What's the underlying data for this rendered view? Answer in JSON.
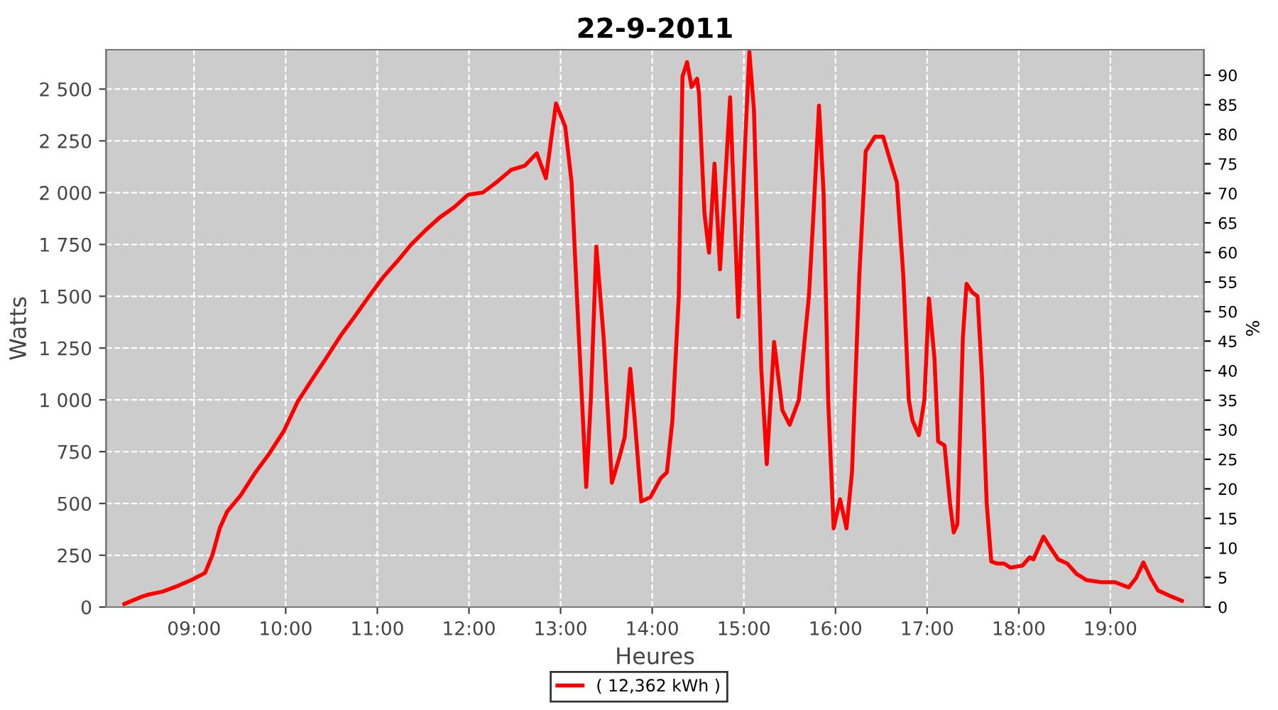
{
  "chart_data": {
    "type": "line",
    "title": "22-9-2011",
    "xlabel": "Heures",
    "ylabel": "Watts",
    "y2label": "%",
    "xlim": [
      8.04,
      20.02
    ],
    "ylim": [
      0,
      2690
    ],
    "y2lim": [
      0,
      94.3
    ],
    "xticks": [
      {
        "value": 9,
        "label": "09:00"
      },
      {
        "value": 10,
        "label": "10:00"
      },
      {
        "value": 11,
        "label": "11:00"
      },
      {
        "value": 12,
        "label": "12:00"
      },
      {
        "value": 13,
        "label": "13:00"
      },
      {
        "value": 14,
        "label": "14:00"
      },
      {
        "value": 15,
        "label": "15:00"
      },
      {
        "value": 16,
        "label": "16:00"
      },
      {
        "value": 17,
        "label": "17:00"
      },
      {
        "value": 18,
        "label": "18:00"
      },
      {
        "value": 19,
        "label": "19:00"
      }
    ],
    "yticks": [
      0,
      250,
      500,
      750,
      {
        "value": 1000,
        "label": "1 000"
      },
      {
        "value": 1250,
        "label": "1 250"
      },
      {
        "value": 1500,
        "label": "1 500"
      },
      {
        "value": 1750,
        "label": "1 750"
      },
      {
        "value": 2000,
        "label": "2 000"
      },
      {
        "value": 2250,
        "label": "2 250"
      },
      {
        "value": 2500,
        "label": "2 500"
      }
    ],
    "y2ticks": [
      0,
      5,
      10,
      15,
      20,
      25,
      30,
      35,
      40,
      45,
      50,
      55,
      60,
      65,
      70,
      75,
      80,
      85,
      90
    ],
    "grid": true,
    "legend": "bottom",
    "series": [
      {
        "name": "( 12,362 kWh )",
        "color": "#ff0000",
        "x": [
          8.24,
          8.43,
          8.5,
          8.66,
          8.81,
          8.97,
          9.12,
          9.2,
          9.28,
          9.36,
          9.51,
          9.67,
          9.82,
          9.98,
          10.13,
          10.29,
          10.44,
          10.6,
          10.75,
          10.91,
          11.06,
          11.22,
          11.37,
          11.53,
          11.68,
          11.84,
          11.99,
          12.15,
          12.3,
          12.46,
          12.61,
          12.74,
          12.84,
          12.95,
          13.05,
          13.12,
          13.2,
          13.28,
          13.33,
          13.39,
          13.47,
          13.56,
          13.64,
          13.7,
          13.76,
          13.81,
          13.88,
          13.98,
          14.09,
          14.16,
          14.22,
          14.29,
          14.33,
          14.38,
          14.43,
          14.49,
          14.51,
          14.57,
          14.62,
          14.68,
          14.74,
          14.85,
          14.94,
          15.02,
          15.06,
          15.11,
          15.19,
          15.25,
          15.33,
          15.42,
          15.5,
          15.6,
          15.71,
          15.76,
          15.82,
          15.87,
          15.92,
          15.98,
          16.05,
          16.12,
          16.18,
          16.26,
          16.33,
          16.43,
          16.52,
          16.6,
          16.67,
          16.74,
          16.8,
          16.84,
          16.91,
          16.97,
          17.02,
          17.08,
          17.12,
          17.19,
          17.25,
          17.29,
          17.33,
          17.39,
          17.43,
          17.49,
          17.55,
          17.6,
          17.65,
          17.7,
          17.76,
          17.84,
          17.91,
          18.04,
          18.12,
          18.16,
          18.27,
          18.34,
          18.43,
          18.53,
          18.63,
          18.74,
          18.9,
          19.05,
          19.2,
          19.28,
          19.36,
          19.44,
          19.52,
          19.67,
          19.78
        ],
        "values": [
          15,
          50,
          60,
          75,
          100,
          130,
          165,
          250,
          380,
          460,
          540,
          650,
          740,
          850,
          990,
          1100,
          1200,
          1310,
          1400,
          1500,
          1590,
          1670,
          1750,
          1820,
          1880,
          1930,
          1990,
          2000,
          2050,
          2110,
          2130,
          2190,
          2070,
          2430,
          2320,
          2050,
          1300,
          580,
          1000,
          1740,
          1300,
          600,
          720,
          820,
          1150,
          900,
          510,
          530,
          620,
          650,
          900,
          1500,
          2560,
          2630,
          2510,
          2550,
          2480,
          1900,
          1710,
          2140,
          1630,
          2460,
          1400,
          2300,
          2680,
          2400,
          1150,
          690,
          1280,
          950,
          880,
          1000,
          1500,
          1900,
          2420,
          2000,
          1000,
          380,
          520,
          380,
          650,
          1600,
          2200,
          2270,
          2270,
          2150,
          2050,
          1600,
          1000,
          900,
          830,
          1000,
          1490,
          1200,
          800,
          780,
          500,
          360,
          400,
          1300,
          1560,
          1520,
          1500,
          1100,
          500,
          220,
          210,
          210,
          190,
          200,
          240,
          230,
          340,
          290,
          230,
          210,
          160,
          130,
          120,
          120,
          95,
          140,
          215,
          140,
          80,
          50,
          30
        ]
      }
    ]
  }
}
